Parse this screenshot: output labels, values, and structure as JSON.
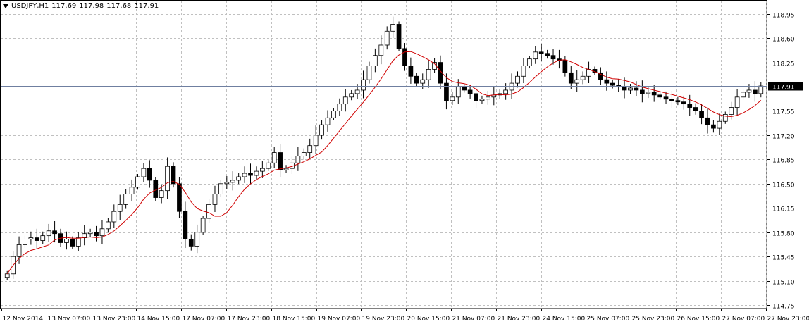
{
  "header": {
    "symbol": "USDJPY,H1",
    "open": "117.69",
    "high": "117.98",
    "low": "117.68",
    "close": "117.91"
  },
  "colors": {
    "background": "#ffffff",
    "grid": "#c0c0c0",
    "candle": "#000000",
    "ma": "#d00000",
    "bid_line": "#6f7fa0",
    "price_box": "#000000"
  },
  "chart_data": {
    "type": "candlestick",
    "title": "USDJPY,H1",
    "ylim": [
      114.7,
      119.15
    ],
    "grid": true,
    "y_ticks": [
      "118.95",
      "118.60",
      "118.25",
      "117.90",
      "117.55",
      "117.20",
      "116.85",
      "116.50",
      "116.15",
      "115.80",
      "115.45",
      "115.10",
      "114.75"
    ],
    "x_ticks": [
      "12 Nov 2014",
      "13 Nov 07:00",
      "13 Nov 23:00",
      "14 Nov 15:00",
      "17 Nov 07:00",
      "17 Nov 23:00",
      "18 Nov 15:00",
      "19 Nov 07:00",
      "19 Nov 23:00",
      "20 Nov 15:00",
      "21 Nov 07:00",
      "21 Nov 23:00",
      "24 Nov 15:00",
      "25 Nov 07:00",
      "25 Nov 23:00",
      "26 Nov 15:00",
      "27 Nov 07:00",
      "27 Nov 23:00"
    ],
    "current_price": "117.91",
    "close_series": [
      115.2,
      115.45,
      115.62,
      115.7,
      115.72,
      115.68,
      115.75,
      115.82,
      115.78,
      115.65,
      115.7,
      115.6,
      115.72,
      115.78,
      115.8,
      115.75,
      115.85,
      115.95,
      116.1,
      116.2,
      116.35,
      116.45,
      116.6,
      116.72,
      116.55,
      116.3,
      116.4,
      116.75,
      116.5,
      116.1,
      115.7,
      115.6,
      115.8,
      116.0,
      116.2,
      116.35,
      116.5,
      116.52,
      116.55,
      116.6,
      116.65,
      116.62,
      116.68,
      116.72,
      116.8,
      116.95,
      116.7,
      116.72,
      116.8,
      116.9,
      116.95,
      117.05,
      117.2,
      117.35,
      117.45,
      117.55,
      117.65,
      117.75,
      117.8,
      117.85,
      118.0,
      118.2,
      118.35,
      118.5,
      118.7,
      118.8,
      118.45,
      118.2,
      118.05,
      117.95,
      118.0,
      118.15,
      118.25,
      117.95,
      117.7,
      117.75,
      117.9,
      117.85,
      117.8,
      117.7,
      117.72,
      117.75,
      117.78,
      117.8,
      117.85,
      117.95,
      118.05,
      118.2,
      118.3,
      118.4,
      118.38,
      118.35,
      118.3,
      118.28,
      118.1,
      117.95,
      118.0,
      118.05,
      118.15,
      118.1,
      118.0,
      117.95,
      117.92,
      117.9,
      117.85,
      117.88,
      117.85,
      117.8,
      117.82,
      117.78,
      117.75,
      117.72,
      117.7,
      117.68,
      117.65,
      117.6,
      117.55,
      117.45,
      117.35,
      117.3,
      117.4,
      117.5,
      117.6,
      117.75,
      117.82,
      117.85,
      117.8,
      117.91
    ]
  }
}
